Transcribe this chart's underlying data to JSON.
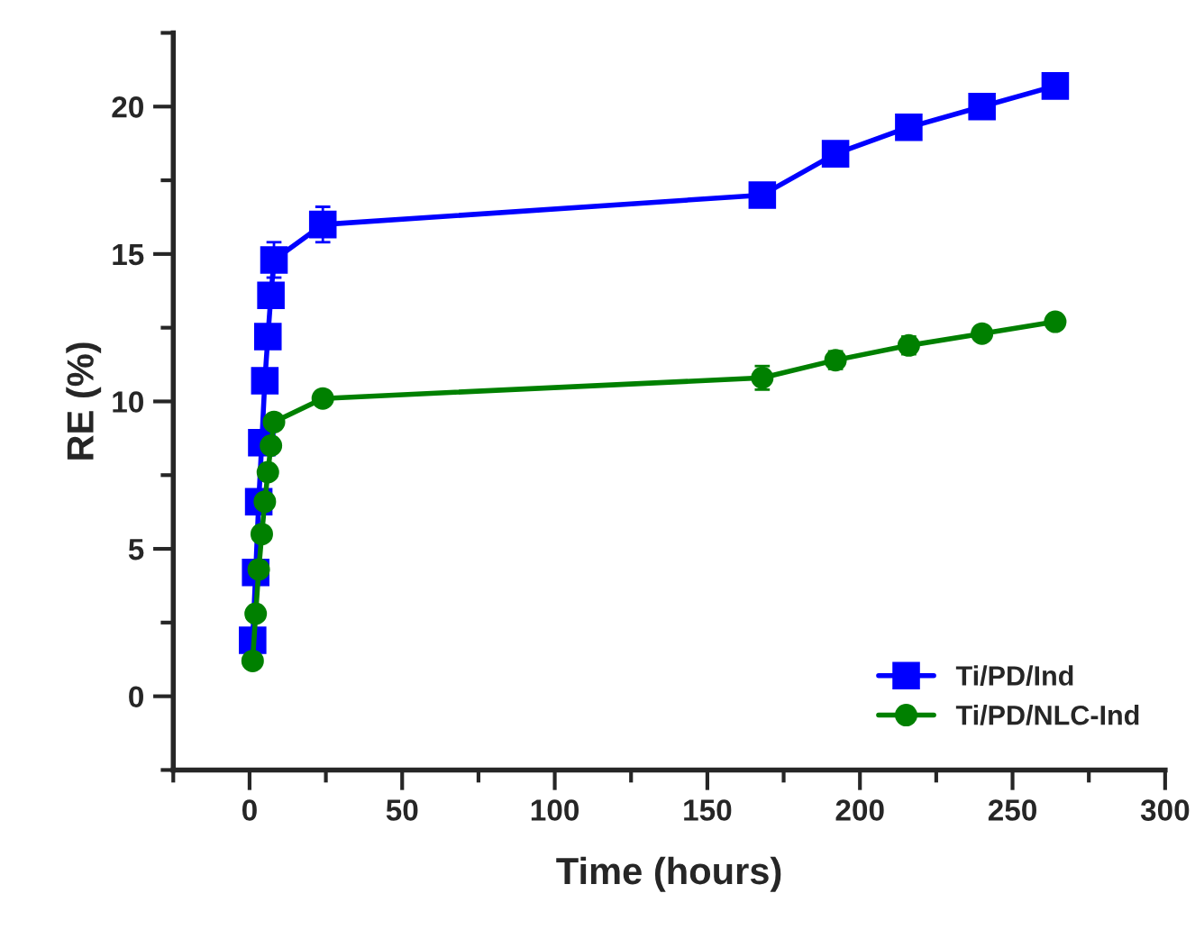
{
  "chart_data": {
    "type": "line",
    "xlabel": "Time (hours)",
    "ylabel": "RE (%)",
    "xlim": [
      -25,
      300
    ],
    "xticks": [
      0,
      50,
      100,
      150,
      200,
      250,
      300
    ],
    "ylim": [
      -2.5,
      22.5
    ],
    "yticks": [
      0,
      5,
      10,
      15,
      20
    ],
    "grid": false,
    "legend": "bottom right",
    "series": [
      {
        "name": "Ti/PD/Ind",
        "color": "#0000ff",
        "marker": "square",
        "x": [
          1,
          2,
          3,
          4,
          5,
          6,
          7,
          8,
          24,
          168,
          192,
          216,
          240,
          264
        ],
        "values": [
          1.9,
          4.2,
          6.6,
          8.6,
          10.7,
          12.2,
          13.6,
          14.8,
          16.0,
          17.0,
          18.4,
          19.3,
          20.0,
          20.7
        ],
        "errors": [
          0.2,
          0.2,
          0.2,
          0.3,
          0.3,
          0.3,
          0.3,
          0.6,
          0.6,
          0.3,
          0.4,
          0.3,
          0.4,
          0.2
        ]
      },
      {
        "name": "Ti/PD/NLC-Ind",
        "color": "#008000",
        "marker": "circle",
        "x": [
          1,
          2,
          3,
          4,
          5,
          6,
          7,
          8,
          24,
          168,
          192,
          216,
          240,
          264
        ],
        "values": [
          1.2,
          2.8,
          4.3,
          5.5,
          6.6,
          7.6,
          8.5,
          9.3,
          10.1,
          10.8,
          11.4,
          11.9,
          12.3,
          12.7
        ],
        "errors": [
          0.2,
          0.2,
          0.2,
          0.2,
          0.2,
          0.2,
          0.2,
          0.2,
          0.2,
          0.4,
          0.3,
          0.3,
          0.2,
          0.2
        ]
      }
    ]
  }
}
